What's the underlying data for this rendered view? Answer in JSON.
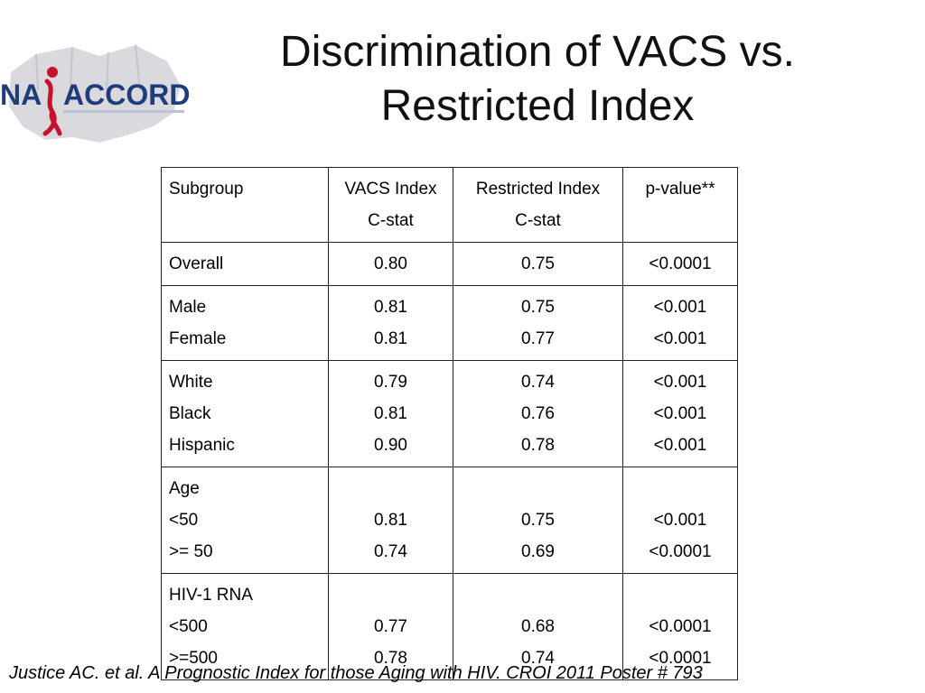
{
  "slide": {
    "title_line1": "Discrimination of VACS vs.",
    "title_line2": "Restricted Index",
    "logo": {
      "left": "NA",
      "right": "ACCORD",
      "icon": "red-ribbon-map-logo"
    },
    "citation": "Justice AC. et al. A Prognostic Index for those Aging with HIV. CROI  2011 Poster # 793"
  },
  "table": {
    "headers": [
      {
        "line1": "Subgroup",
        "line2": ""
      },
      {
        "line1": "VACS Index",
        "line2": "C-stat"
      },
      {
        "line1": "Restricted Index",
        "line2": "C-stat"
      },
      {
        "line1": "p-value**",
        "line2": ""
      }
    ],
    "groups": [
      {
        "rows": [
          {
            "subgroup": "Overall",
            "vacs": "0.80",
            "restricted": "0.75",
            "p": "<0.0001"
          }
        ]
      },
      {
        "rows": [
          {
            "subgroup": "Male",
            "vacs": "0.81",
            "restricted": "0.75",
            "p": "<0.001"
          },
          {
            "subgroup": "Female",
            "vacs": "0.81",
            "restricted": "0.77",
            "p": "<0.001"
          }
        ]
      },
      {
        "rows": [
          {
            "subgroup": "White",
            "vacs": "0.79",
            "restricted": "0.74",
            "p": "<0.001"
          },
          {
            "subgroup": "Black",
            "vacs": "0.81",
            "restricted": "0.76",
            "p": "<0.001"
          },
          {
            "subgroup": "Hispanic",
            "vacs": "0.90",
            "restricted": "0.78",
            "p": "<0.001"
          }
        ]
      },
      {
        "rows": [
          {
            "subgroup": "Age",
            "vacs": "",
            "restricted": "",
            "p": ""
          },
          {
            "subgroup": "<50",
            "vacs": "0.81",
            "restricted": "0.75",
            "p": "<0.001"
          },
          {
            "subgroup": ">= 50",
            "vacs": "0.74",
            "restricted": "0.69",
            "p": "<0.0001"
          }
        ]
      },
      {
        "rows": [
          {
            "subgroup": "HIV-1 RNA",
            "vacs": "",
            "restricted": "",
            "p": ""
          },
          {
            "subgroup": "<500",
            "vacs": "0.77",
            "restricted": "0.68",
            "p": "<0.0001"
          },
          {
            "subgroup": ">=500",
            "vacs": "0.78",
            "restricted": "0.74",
            "p": "<0.0001"
          }
        ]
      }
    ]
  }
}
